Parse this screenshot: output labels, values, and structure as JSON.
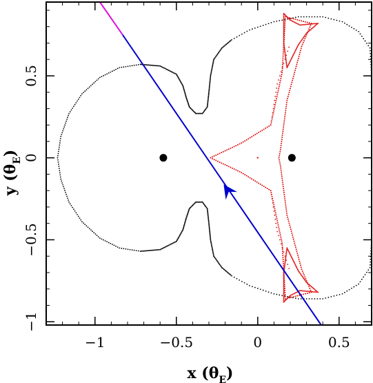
{
  "chart_data": {
    "type": "scatter",
    "title": "",
    "xlabel": {
      "main": "x (θ",
      "sub": "E",
      "close": ")"
    },
    "ylabel": {
      "main": "y (θ",
      "sub": "E",
      "close": ")"
    },
    "xlim": [
      -1.3,
      0.7
    ],
    "ylim": [
      -1.02,
      0.95
    ],
    "xticks": [
      {
        "value": -1,
        "label": "−1"
      },
      {
        "value": -0.5,
        "label": "−0.5"
      },
      {
        "value": 0,
        "label": "0"
      },
      {
        "value": 0.5,
        "label": "0.5"
      }
    ],
    "yticks": [
      {
        "value": -1,
        "label": "−1"
      },
      {
        "value": -0.5,
        "label": "−0.5"
      },
      {
        "value": 0,
        "label": "0"
      },
      {
        "value": 0.5,
        "label": "0.5"
      }
    ],
    "grid": false,
    "legend": "none",
    "lenses": [
      {
        "x": -0.58,
        "y": 0.0
      },
      {
        "x": 0.21,
        "y": 0.0
      }
    ],
    "critical_curve": {
      "color": "#000000",
      "outer_left_lobe": [
        [
          -0.72,
          0.57
        ],
        [
          -0.85,
          0.55
        ],
        [
          -0.97,
          0.49
        ],
        [
          -1.08,
          0.39
        ],
        [
          -1.16,
          0.27
        ],
        [
          -1.21,
          0.13
        ],
        [
          -1.23,
          0.0
        ],
        [
          -1.21,
          -0.13
        ],
        [
          -1.16,
          -0.27
        ],
        [
          -1.08,
          -0.39
        ],
        [
          -0.97,
          -0.49
        ],
        [
          -0.85,
          -0.55
        ],
        [
          -0.72,
          -0.57
        ]
      ],
      "upper_neck": [
        [
          -0.72,
          0.57
        ],
        [
          -0.6,
          0.56
        ],
        [
          -0.5,
          0.51
        ],
        [
          -0.46,
          0.44
        ],
        [
          -0.44,
          0.37
        ],
        [
          -0.42,
          0.31
        ],
        [
          -0.38,
          0.27
        ],
        [
          -0.34,
          0.27
        ],
        [
          -0.31,
          0.31
        ],
        [
          -0.3,
          0.4
        ],
        [
          -0.29,
          0.5
        ],
        [
          -0.27,
          0.6
        ],
        [
          -0.22,
          0.67
        ],
        [
          -0.16,
          0.72
        ]
      ],
      "lower_neck": [
        [
          -0.72,
          -0.57
        ],
        [
          -0.6,
          -0.56
        ],
        [
          -0.5,
          -0.51
        ],
        [
          -0.46,
          -0.44
        ],
        [
          -0.44,
          -0.37
        ],
        [
          -0.42,
          -0.31
        ],
        [
          -0.38,
          -0.27
        ],
        [
          -0.34,
          -0.27
        ],
        [
          -0.31,
          -0.31
        ],
        [
          -0.3,
          -0.4
        ],
        [
          -0.29,
          -0.5
        ],
        [
          -0.27,
          -0.6
        ],
        [
          -0.22,
          -0.67
        ],
        [
          -0.16,
          -0.72
        ]
      ],
      "outer_right": [
        [
          -0.16,
          0.72
        ],
        [
          -0.05,
          0.78
        ],
        [
          0.1,
          0.83
        ],
        [
          0.25,
          0.86
        ],
        [
          0.4,
          0.86
        ],
        [
          0.52,
          0.83
        ],
        [
          0.62,
          0.77
        ],
        [
          0.69,
          0.67
        ],
        [
          0.7,
          0.5
        ]
      ],
      "outer_right_lower": [
        [
          -0.16,
          -0.72
        ],
        [
          -0.05,
          -0.78
        ],
        [
          0.1,
          -0.83
        ],
        [
          0.25,
          -0.86
        ],
        [
          0.4,
          -0.86
        ],
        [
          0.52,
          -0.83
        ],
        [
          0.62,
          -0.77
        ],
        [
          0.69,
          -0.67
        ],
        [
          0.7,
          -0.5
        ]
      ]
    },
    "caustic": {
      "color": "#dd1111",
      "central": [
        [
          -0.29,
          0.0
        ],
        [
          -0.1,
          0.09
        ],
        [
          0.08,
          0.2
        ],
        [
          0.15,
          0.52
        ],
        [
          0.17,
          0.86
        ],
        [
          0.33,
          0.82
        ],
        [
          0.27,
          0.68
        ],
        [
          0.18,
          0.35
        ],
        [
          0.14,
          0.05
        ],
        [
          0.13,
          0.0
        ],
        [
          0.14,
          -0.05
        ],
        [
          0.18,
          -0.35
        ],
        [
          0.27,
          -0.68
        ],
        [
          0.33,
          -0.82
        ],
        [
          0.17,
          -0.86
        ],
        [
          0.15,
          -0.52
        ],
        [
          0.08,
          -0.2
        ],
        [
          -0.1,
          -0.09
        ],
        [
          -0.29,
          0.0
        ]
      ],
      "upper_cap": [
        [
          0.16,
          0.88
        ],
        [
          0.2,
          0.84
        ],
        [
          0.26,
          0.81
        ],
        [
          0.37,
          0.82
        ],
        [
          0.3,
          0.76
        ],
        [
          0.25,
          0.69
        ],
        [
          0.18,
          0.55
        ],
        [
          0.16,
          0.7
        ],
        [
          0.16,
          0.88
        ]
      ],
      "lower_cap": [
        [
          0.16,
          -0.88
        ],
        [
          0.2,
          -0.84
        ],
        [
          0.26,
          -0.81
        ],
        [
          0.37,
          -0.82
        ],
        [
          0.3,
          -0.76
        ],
        [
          0.25,
          -0.69
        ],
        [
          0.18,
          -0.55
        ],
        [
          0.16,
          -0.7
        ],
        [
          0.16,
          -0.88
        ]
      ],
      "inner_lines": [
        [
          [
            0.08,
            0.2
          ],
          [
            0.12,
            0.45
          ],
          [
            0.2,
            0.7
          ]
        ],
        [
          [
            0.08,
            -0.2
          ],
          [
            0.12,
            -0.45
          ],
          [
            0.2,
            -0.7
          ]
        ]
      ],
      "center_dot": [
        0.0,
        0.0
      ]
    },
    "source_trajectory": {
      "color": "#0000cc",
      "highlight_color": "#dd11dd",
      "start": [
        0.39,
        -1.02
      ],
      "end": [
        -0.97,
        0.95
      ],
      "highlight_from": [
        -0.83,
        0.75
      ],
      "arrow_at": [
        -0.19,
        -0.19
      ]
    }
  }
}
